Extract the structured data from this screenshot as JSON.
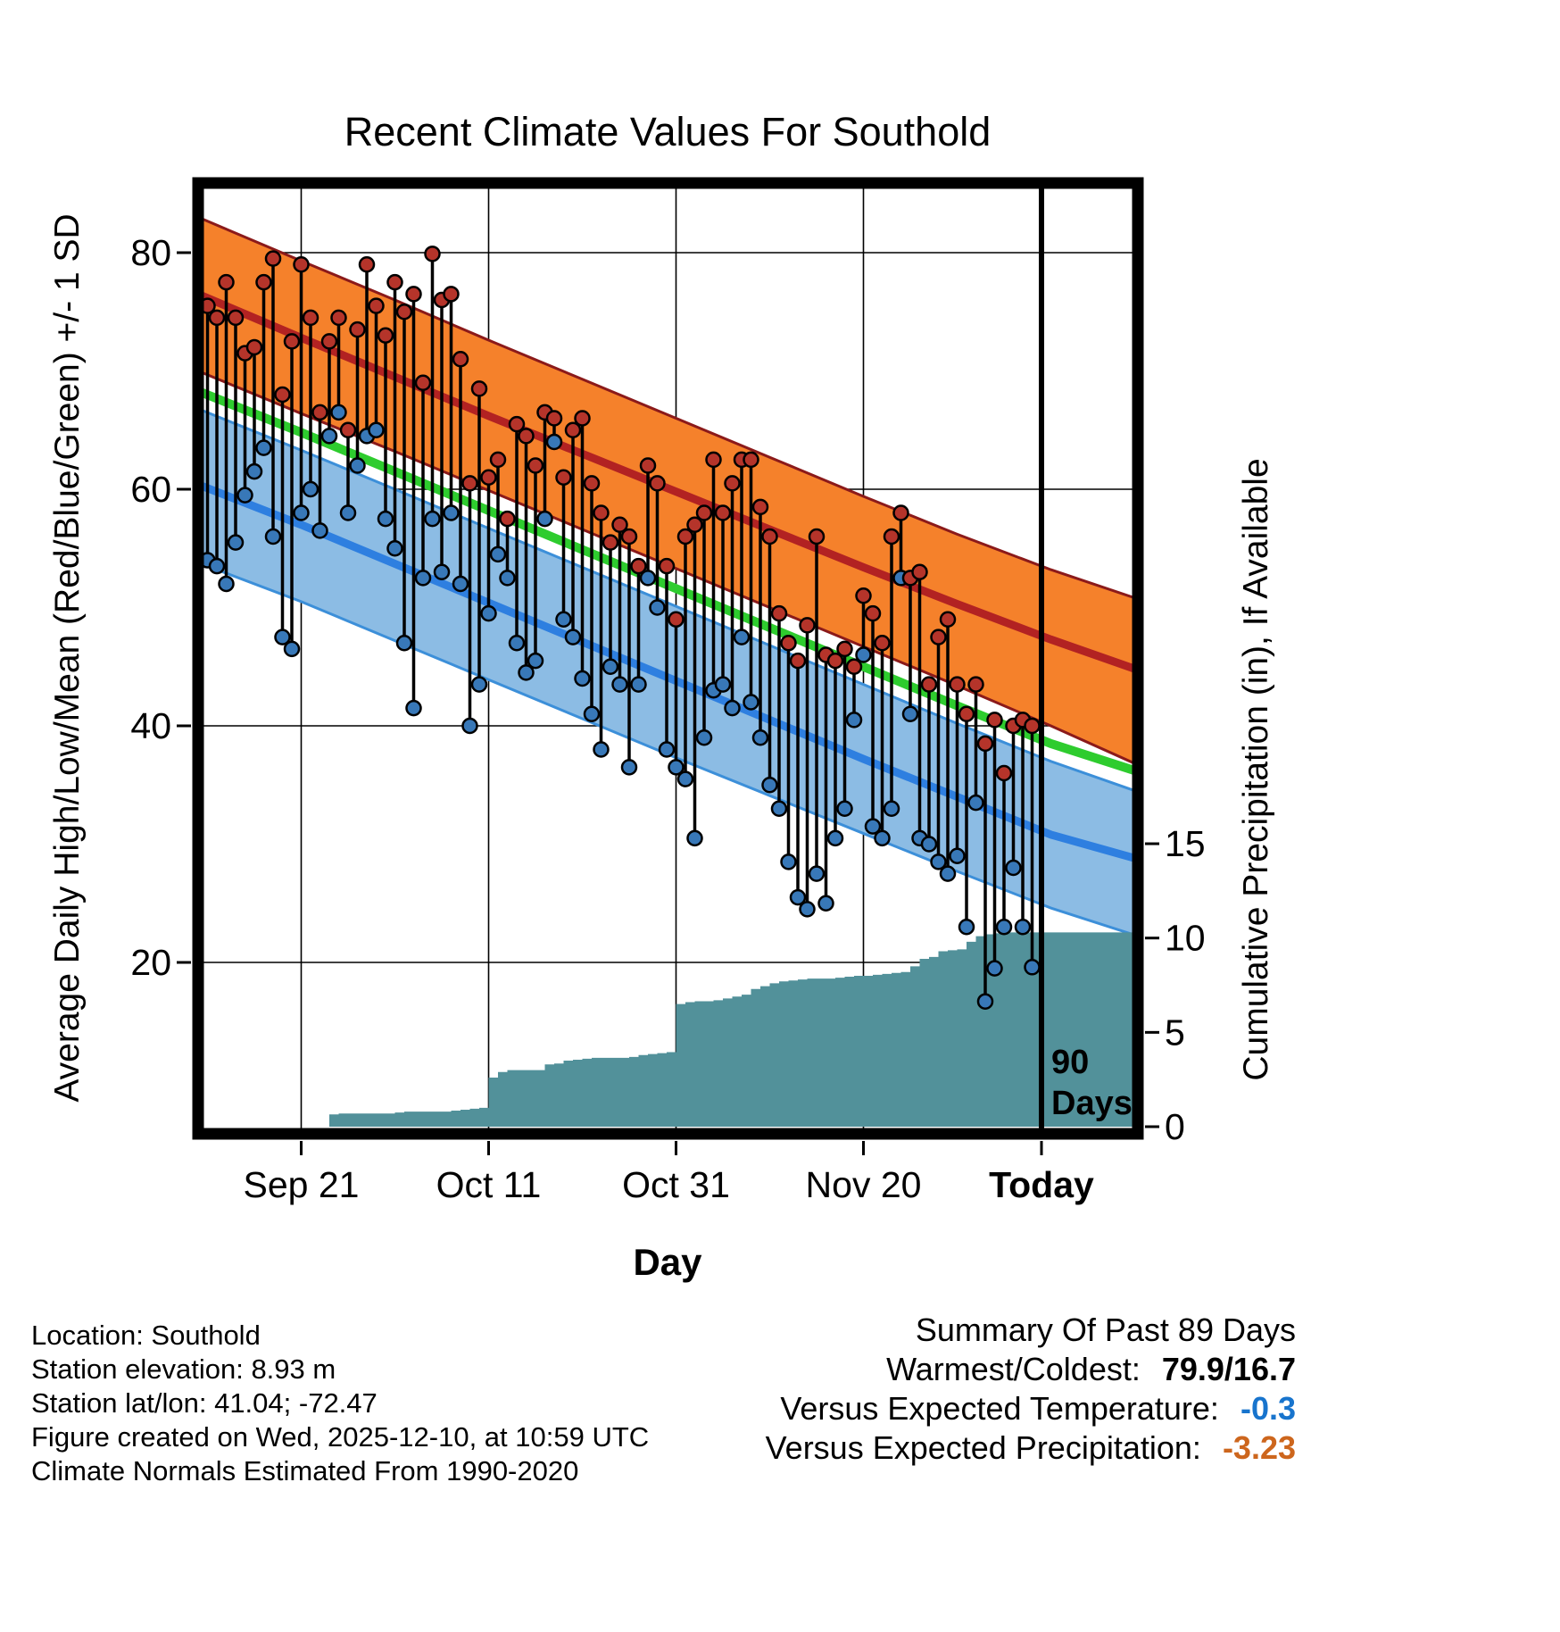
{
  "title": "Recent Climate Values For Southold",
  "axes": {
    "y_left_label": "Average Daily High/Low/Mean (Red/Blue/Green) +/- 1 SD",
    "y_right_label": "Cumulative Precipitation (in), If Available",
    "x_label": "Day",
    "y_left_ticks": [
      20,
      40,
      60,
      80
    ],
    "y_right_ticks": [
      0,
      5,
      10,
      15
    ],
    "x_ticks": [
      {
        "day": 10,
        "label": "Sep 21",
        "bold": false
      },
      {
        "day": 30,
        "label": "Oct 11",
        "bold": false
      },
      {
        "day": 50,
        "label": "Oct 31",
        "bold": false
      },
      {
        "day": 70,
        "label": "Nov 20",
        "bold": false
      },
      {
        "day": 89,
        "label": "Today",
        "bold": true
      }
    ]
  },
  "today_marker": {
    "day": 89,
    "label_line1": "90",
    "label_line2": "Days"
  },
  "footer": {
    "lines": [
      "Location: Southold",
      "Station elevation: 8.93 m",
      "Station lat/lon: 41.04; -72.47",
      "Figure created on Wed, 2025-12-10, at 10:59 UTC",
      "Climate Normals Estimated From 1990-2020"
    ]
  },
  "summary": {
    "title": "Summary Of Past 89 Days",
    "rows": [
      {
        "label": "Warmest/Coldest:",
        "value": "79.9/16.7",
        "color": "#000000"
      },
      {
        "label": "Versus Expected Temperature:",
        "value": "-0.3",
        "color": "#1874CD"
      },
      {
        "label": "Versus Expected Precipitation:",
        "value": "-3.23",
        "color": "#CD661D"
      }
    ]
  },
  "colors": {
    "high_band": "#F5812B",
    "high_band_edge": "#8B1A1A",
    "high_mean_line": "#B22222",
    "mean_line": "#2ECC2E",
    "low_band": "#8CBCE4",
    "low_band_edge": "#3C8FD9",
    "low_mean_line": "#2E7FE0",
    "high_dot": "#B5342A",
    "low_dot": "#3878B8",
    "stem": "#000000",
    "precip_area": "#52919A",
    "frame": "#000000",
    "gridline": "#000000"
  },
  "chart_data": {
    "type": "line",
    "title": "Recent Climate Values For Southold",
    "xlabel": "Day",
    "ylabel_left": "Average Daily High/Low/Mean (Red/Blue/Green) +/- 1 SD",
    "ylabel_right": "Cumulative Precipitation (in), If Available",
    "x_tick_labels": [
      "Sep 21",
      "Oct 11",
      "Oct 31",
      "Nov 20",
      "Today"
    ],
    "temp_axis_ticks": [
      20,
      40,
      60,
      80
    ],
    "precip_axis_ticks": [
      0,
      5,
      10,
      15
    ],
    "today_day": 89,
    "daily": {
      "high": [
        75.5,
        74.5,
        77.5,
        74.5,
        71.5,
        72.0,
        77.5,
        79.5,
        68.0,
        72.5,
        79.0,
        74.5,
        66.5,
        72.5,
        74.5,
        65.0,
        73.5,
        79.0,
        75.5,
        73.0,
        77.5,
        75.0,
        76.5,
        69.0,
        79.9,
        76.0,
        76.5,
        71.0,
        60.5,
        68.5,
        61.0,
        62.5,
        57.5,
        65.5,
        64.5,
        62.0,
        66.5,
        66.0,
        61.0,
        65.0,
        66.0,
        60.5,
        58.0,
        55.5,
        57.0,
        56.0,
        53.5,
        62.0,
        60.5,
        53.5,
        49.0,
        56.0,
        57.0,
        58.0,
        62.5,
        58.0,
        60.5,
        62.5,
        62.5,
        58.5,
        56.0,
        49.5,
        47.0,
        45.5,
        48.5,
        56.0,
        46.0,
        45.5,
        46.5,
        45.0,
        51.0,
        49.5,
        47.0,
        56.0,
        58.0,
        52.5,
        53.0,
        43.5,
        47.5,
        49.0,
        43.5,
        41.0,
        43.5,
        38.5,
        40.5,
        36.0,
        40.0,
        40.5,
        40.0
      ],
      "low": [
        54.0,
        53.5,
        52.0,
        55.5,
        59.5,
        61.5,
        63.5,
        56.0,
        47.5,
        46.5,
        58.0,
        60.0,
        56.5,
        64.5,
        66.5,
        58.0,
        62.0,
        64.5,
        65.0,
        57.5,
        55.0,
        47.0,
        41.5,
        52.5,
        57.5,
        53.0,
        58.0,
        52.0,
        40.0,
        43.5,
        49.5,
        54.5,
        52.5,
        47.0,
        44.5,
        45.5,
        57.5,
        64.0,
        49.0,
        47.5,
        44.0,
        41.0,
        38.0,
        45.0,
        43.5,
        36.5,
        43.5,
        52.5,
        50.0,
        38.0,
        36.5,
        35.5,
        30.5,
        39.0,
        43.0,
        43.5,
        41.5,
        47.5,
        42.0,
        39.0,
        35.0,
        33.0,
        28.5,
        25.5,
        24.5,
        27.5,
        25.0,
        30.5,
        33.0,
        40.5,
        46.0,
        31.5,
        30.5,
        33.0,
        52.5,
        41.0,
        30.5,
        30.0,
        28.5,
        27.5,
        29.0,
        23.0,
        33.5,
        16.7,
        19.5,
        23.0,
        28.0,
        23.0,
        19.6
      ]
    },
    "normals": {
      "day": [
        -1,
        10,
        20,
        30,
        40,
        50,
        60,
        70,
        80,
        90,
        99
      ],
      "high_upper": [
        83.0,
        79.3,
        76.0,
        72.6,
        69.3,
        66.0,
        62.7,
        59.4,
        56.2,
        53.2,
        50.8
      ],
      "high_mean": [
        76.5,
        72.8,
        69.5,
        66.2,
        63.0,
        59.8,
        56.6,
        53.4,
        50.3,
        47.3,
        44.8
      ],
      "high_lower": [
        70.0,
        66.4,
        63.2,
        59.9,
        56.6,
        53.3,
        50.0,
        46.7,
        43.4,
        40.0,
        36.8
      ],
      "mean": [
        68.3,
        64.8,
        61.5,
        58.2,
        54.9,
        51.6,
        48.3,
        45.0,
        41.7,
        38.5,
        36.2
      ],
      "low_upper": [
        66.8,
        63.3,
        60.0,
        56.7,
        53.4,
        50.1,
        46.8,
        43.5,
        40.2,
        37.0,
        34.5
      ],
      "low_mean": [
        60.4,
        57.0,
        53.7,
        50.4,
        47.1,
        43.8,
        40.5,
        37.2,
        34.0,
        30.8,
        28.8
      ],
      "low_lower": [
        53.8,
        50.5,
        47.2,
        43.9,
        40.6,
        37.3,
        34.1,
        30.9,
        27.7,
        24.6,
        22.3
      ]
    },
    "cumulative_precip": [
      0,
      0,
      0,
      0,
      0,
      0,
      0,
      0,
      0,
      0,
      0,
      0,
      0,
      0.65,
      0.7,
      0.7,
      0.7,
      0.7,
      0.7,
      0.7,
      0.75,
      0.8,
      0.8,
      0.8,
      0.8,
      0.8,
      0.85,
      0.9,
      0.95,
      1.0,
      2.6,
      2.9,
      3.0,
      3.0,
      3.0,
      3.0,
      3.3,
      3.35,
      3.5,
      3.55,
      3.6,
      3.65,
      3.65,
      3.65,
      3.65,
      3.7,
      3.8,
      3.85,
      3.9,
      3.95,
      6.5,
      6.6,
      6.65,
      6.65,
      6.7,
      6.8,
      6.9,
      7.0,
      7.3,
      7.45,
      7.6,
      7.7,
      7.75,
      7.8,
      7.85,
      7.85,
      7.85,
      7.9,
      7.95,
      8.0,
      8.0,
      8.05,
      8.1,
      8.15,
      8.2,
      8.5,
      8.9,
      9.0,
      9.3,
      9.35,
      9.4,
      9.8,
      10.1,
      10.2,
      10.25,
      10.3,
      10.3,
      10.3,
      10.3
    ]
  }
}
